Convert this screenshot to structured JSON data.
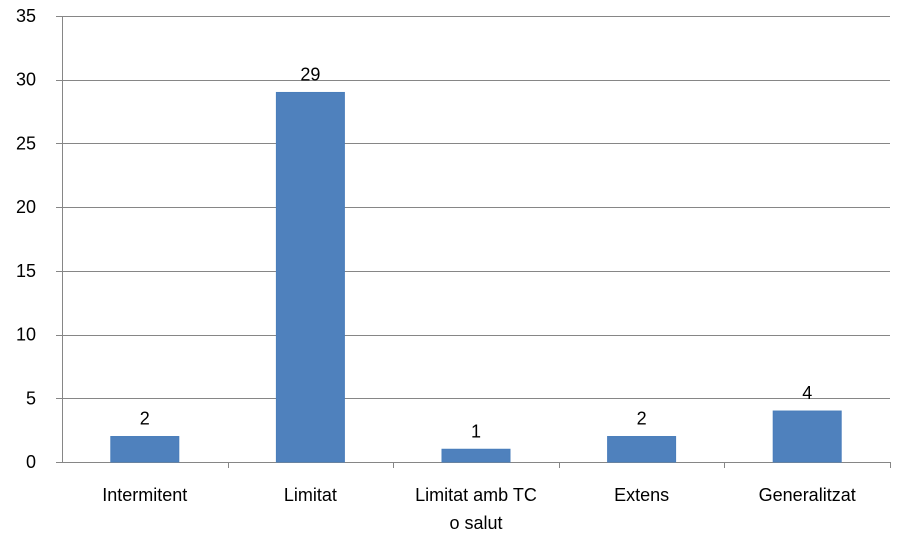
{
  "chart_data": {
    "type": "bar",
    "categories": [
      [
        "Intermitent"
      ],
      [
        "Limitat"
      ],
      [
        "Limitat amb TC",
        "o salut"
      ],
      [
        "Extens"
      ],
      [
        "Generalitzat"
      ]
    ],
    "values": [
      2,
      29,
      1,
      2,
      4
    ],
    "data_labels": [
      "2",
      "29",
      "1",
      "2",
      "4"
    ],
    "title": "",
    "xlabel": "",
    "ylabel": "",
    "ylim": [
      0,
      35
    ],
    "yticks": [
      0,
      5,
      10,
      15,
      20,
      25,
      30,
      35
    ],
    "ytick_labels": [
      "0",
      "5",
      "10",
      "15",
      "20",
      "25",
      "30",
      "35"
    ],
    "grid": true,
    "legend": "none",
    "colors": {
      "bar": "#4F81BD",
      "bar_edge": "#4A7EBB",
      "grid": "#868686",
      "axis": "#868686"
    }
  }
}
